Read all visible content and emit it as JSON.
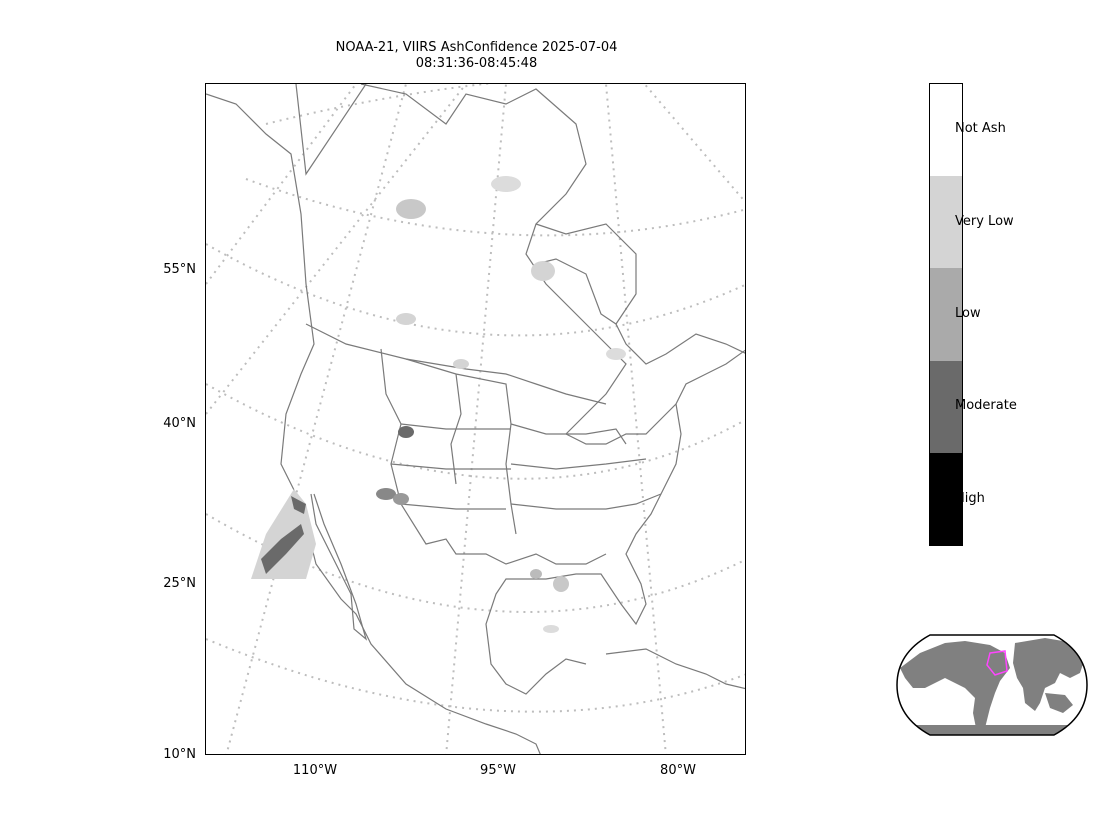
{
  "title": {
    "line1": "NOAA-21, VIIRS AshConfidence 2025-07-04",
    "line2": "08:31:36-08:45:48"
  },
  "lat_labels": [
    "55°N",
    "40°N",
    "25°N",
    "10°N"
  ],
  "lon_labels": [
    "110°W",
    "95°W",
    "80°W"
  ],
  "colorbar": {
    "categories": [
      {
        "label": "Not Ash",
        "color": "#ffffff"
      },
      {
        "label": "Very Low",
        "color": "#d4d4d4"
      },
      {
        "label": "Low",
        "color": "#aaaaaa"
      },
      {
        "label": "Moderate",
        "color": "#6a6a6a"
      },
      {
        "label": "High",
        "color": "#000000"
      }
    ]
  },
  "colors": {
    "coastline": "#7a7a7a",
    "graticule": "#bdbdbd",
    "inset_land": "#808080",
    "inset_box": "#ff44ff"
  }
}
